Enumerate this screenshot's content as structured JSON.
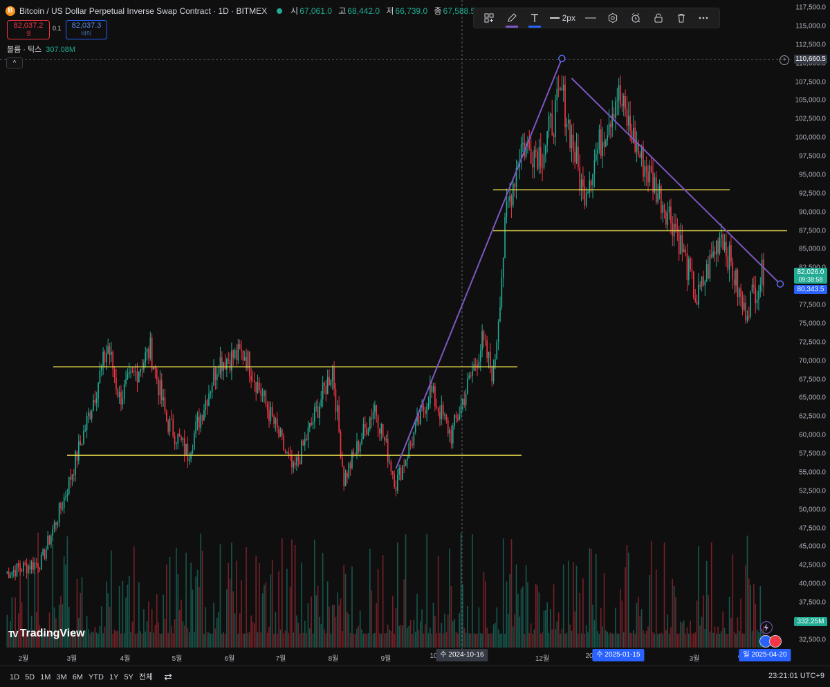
{
  "header": {
    "symbol_icon": "B",
    "title": "Bitcoin / US Dollar Perpetual Inverse Swap Contract · 1D · BITMEX",
    "ohlc": [
      {
        "k": "시",
        "v": "67,061.0"
      },
      {
        "k": "고",
        "v": "68,442.0"
      },
      {
        "k": "저",
        "v": "66,739.0"
      },
      {
        "k": "종",
        "v": "67,588.5"
      }
    ],
    "sell_price": "82,037.2",
    "sell_label": "셀",
    "spread": "0.1",
    "buy_price": "82,037.3",
    "buy_label": "바이",
    "volume_label": "볼륨 · 틱스",
    "volume_value": "307.08M",
    "collapse_glyph": "^"
  },
  "toolbar": {
    "width_label": "2px",
    "colors": {
      "pen": "#7e57c2",
      "text": "#2962ff"
    },
    "icons": [
      "template-icon",
      "pen-icon",
      "text-icon",
      "line-width",
      "line-style-icon",
      "settings-icon",
      "alert-icon",
      "lock-icon",
      "trash-icon",
      "more-icon"
    ]
  },
  "price_axis": {
    "ticks": [
      "117,500.0",
      "115,000.0",
      "112,500.0",
      "110,000.0",
      "107,500.0",
      "105,000.0",
      "102,500.0",
      "100,000.0",
      "97,500.0",
      "95,000.0",
      "92,500.0",
      "90,000.0",
      "87,500.0",
      "85,000.0",
      "82,500.0",
      "77,500.0",
      "75,000.0",
      "72,500.0",
      "70,000.0",
      "67,500.0",
      "65,000.0",
      "62,500.0",
      "60,000.0",
      "57,500.0",
      "55,000.0",
      "52,500.0",
      "50,000.0",
      "47,500.0",
      "45,000.0",
      "42,500.0",
      "40,000.0",
      "37,500.0",
      "32,500.0"
    ],
    "crosshair_price": "110,660.5",
    "last_price": "82,026.0",
    "countdown": "09:38:58",
    "line_price": "80,343.5",
    "volume_badge": "332.25M"
  },
  "time_axis": {
    "labels": [
      "2월",
      "3월",
      "4월",
      "5월",
      "6월",
      "7월",
      "8월",
      "9월",
      "10",
      "12월",
      "20",
      "3월",
      "일"
    ],
    "badges": [
      "수 2024-10-16",
      "수 2025-01-15",
      "일 2025-04-20"
    ]
  },
  "bottom": {
    "ranges": [
      "1D",
      "5D",
      "1M",
      "3M",
      "6M",
      "YTD",
      "1Y",
      "5Y",
      "전체"
    ],
    "clock": "23:21:01 UTC+9"
  },
  "logo": {
    "text": "TradingView",
    "mark": "TV"
  },
  "colors": {
    "up": "#22ab94",
    "down": "#f23645",
    "trend": "#7e57c2",
    "level": "#e6d84a",
    "last_price_bg": "#22ab94",
    "line_price_bg": "#2962ff",
    "crosshair_bg": "#363a45"
  },
  "chart_data": {
    "type": "candlestick",
    "x_range": [
      "2024-01-10",
      "2025-04-20"
    ],
    "price_range": [
      32500,
      117500
    ],
    "horizontal_levels": [
      69200,
      57300,
      93000,
      87500
    ],
    "trendlines": [
      {
        "from": [
          "2024-09-06",
          55500
        ],
        "to": [
          "2024-12-17",
          110660
        ]
      },
      {
        "from": [
          "2024-12-23",
          108000
        ],
        "to": [
          "2025-04-20",
          80343
        ]
      }
    ],
    "anchors": [
      {
        "date": "2024-01-10",
        "close": 41500
      },
      {
        "date": "2024-02-01",
        "close": 43000
      },
      {
        "date": "2024-02-15",
        "close": 51500
      },
      {
        "date": "2024-02-28",
        "close": 61000
      },
      {
        "date": "2024-03-13",
        "close": 72000
      },
      {
        "date": "2024-03-20",
        "close": 65000
      },
      {
        "date": "2024-04-08",
        "close": 71500
      },
      {
        "date": "2024-04-18",
        "close": 62000
      },
      {
        "date": "2024-05-01",
        "close": 57500
      },
      {
        "date": "2024-05-20",
        "close": 70000
      },
      {
        "date": "2024-06-05",
        "close": 71000
      },
      {
        "date": "2024-06-24",
        "close": 61000
      },
      {
        "date": "2024-07-05",
        "close": 55000
      },
      {
        "date": "2024-07-29",
        "close": 69000
      },
      {
        "date": "2024-08-05",
        "close": 54000
      },
      {
        "date": "2024-08-24",
        "close": 64000
      },
      {
        "date": "2024-09-06",
        "close": 53500
      },
      {
        "date": "2024-09-27",
        "close": 66000
      },
      {
        "date": "2024-10-10",
        "close": 60000
      },
      {
        "date": "2024-10-29",
        "close": 72500
      },
      {
        "date": "2024-11-05",
        "close": 68000
      },
      {
        "date": "2024-11-13",
        "close": 90000
      },
      {
        "date": "2024-11-22",
        "close": 99000
      },
      {
        "date": "2024-12-05",
        "close": 98000
      },
      {
        "date": "2024-12-17",
        "close": 106000
      },
      {
        "date": "2024-12-30",
        "close": 92500
      },
      {
        "date": "2025-01-20",
        "close": 106000
      },
      {
        "date": "2025-02-03",
        "close": 97500
      },
      {
        "date": "2025-02-25",
        "close": 88000
      },
      {
        "date": "2025-03-10",
        "close": 78000
      },
      {
        "date": "2025-03-25",
        "close": 87500
      },
      {
        "date": "2025-04-08",
        "close": 76500
      },
      {
        "date": "2025-04-20",
        "close": 82026
      }
    ],
    "volume_max": "≈ 0.5B"
  }
}
